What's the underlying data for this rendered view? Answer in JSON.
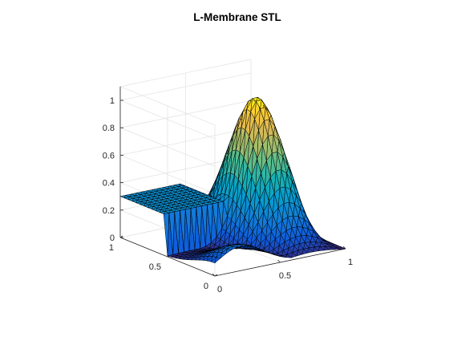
{
  "chart_data": {
    "type": "surface",
    "title": "L-Membrane STL",
    "colormap": "parula",
    "edge_color": "#000000",
    "grid": true,
    "xlim": [
      0,
      1
    ],
    "ylim": [
      0,
      1
    ],
    "zlim": [
      0,
      1.1
    ],
    "x_ticks": [
      "0",
      "0.5",
      "1"
    ],
    "y_ticks": [
      "0",
      "0.5",
      "1"
    ],
    "z_ticks": [
      "0",
      "0.2",
      "0.4",
      "0.6",
      "0.8",
      "1"
    ],
    "x_tick_values": [
      0,
      0.5,
      1
    ],
    "y_tick_values": [
      0,
      0.5,
      1
    ],
    "z_tick_values": [
      0,
      0.2,
      0.4,
      0.6,
      0.8,
      1
    ],
    "peak": {
      "x": 0.73,
      "y": 0.57,
      "z": 1.0
    },
    "plateau_z": 0.3,
    "ridge_min_z": 0.0,
    "corner_z": {
      "x0y0": 0.17,
      "x1y0": 0.0,
      "x1y1": 0.0,
      "x0y1": 0.29
    }
  }
}
